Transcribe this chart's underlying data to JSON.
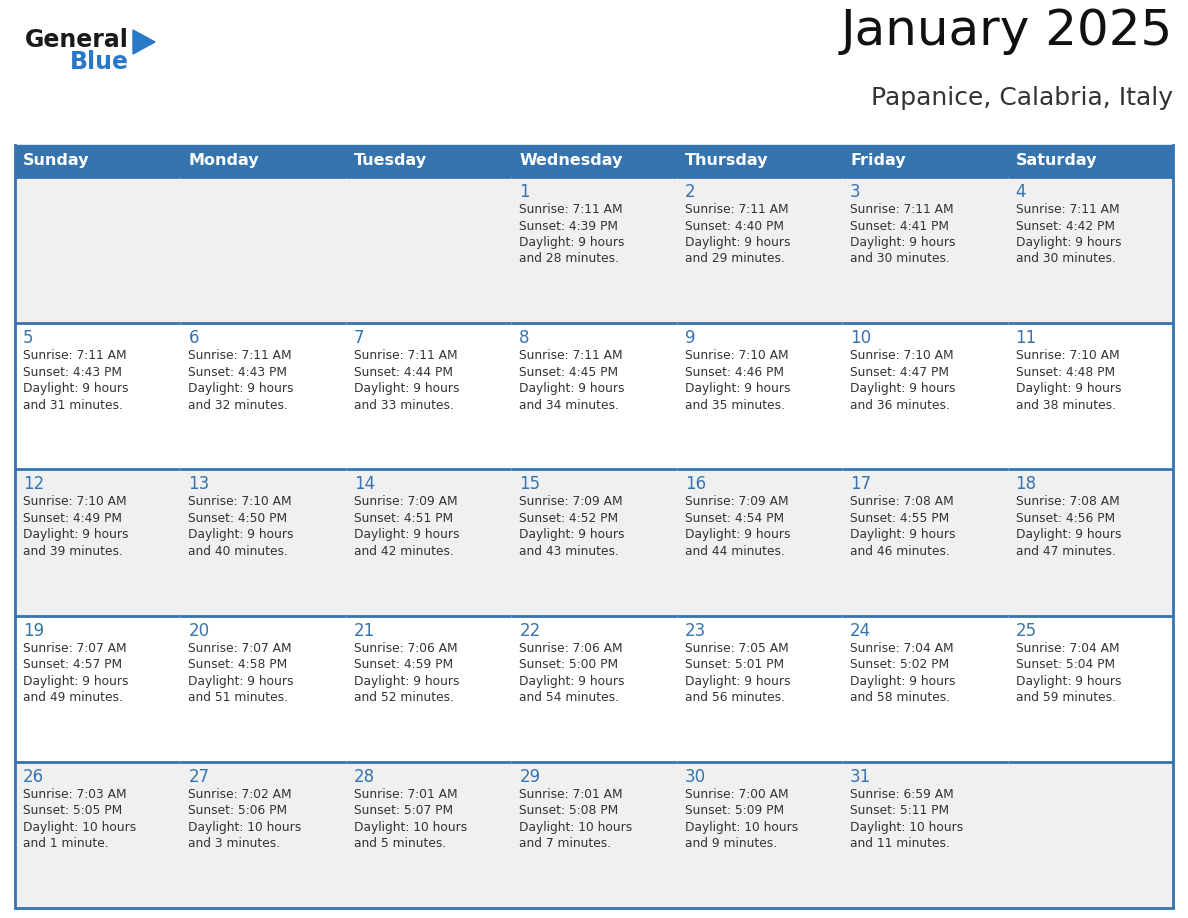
{
  "title": "January 2025",
  "subtitle": "Papanice, Calabria, Italy",
  "header_color": "#3674B0",
  "header_text_color": "#FFFFFF",
  "cell_bg_white": "#FFFFFF",
  "cell_bg_gray": "#F0F0F0",
  "cell_border_color": "#3674B0",
  "day_number_color": "#3674B0",
  "cell_text_color": "#333333",
  "bg_color": "#FFFFFF",
  "days_of_week": [
    "Sunday",
    "Monday",
    "Tuesday",
    "Wednesday",
    "Thursday",
    "Friday",
    "Saturday"
  ],
  "weeks": [
    [
      {
        "day": "",
        "info": ""
      },
      {
        "day": "",
        "info": ""
      },
      {
        "day": "",
        "info": ""
      },
      {
        "day": "1",
        "info": "Sunrise: 7:11 AM\nSunset: 4:39 PM\nDaylight: 9 hours\nand 28 minutes."
      },
      {
        "day": "2",
        "info": "Sunrise: 7:11 AM\nSunset: 4:40 PM\nDaylight: 9 hours\nand 29 minutes."
      },
      {
        "day": "3",
        "info": "Sunrise: 7:11 AM\nSunset: 4:41 PM\nDaylight: 9 hours\nand 30 minutes."
      },
      {
        "day": "4",
        "info": "Sunrise: 7:11 AM\nSunset: 4:42 PM\nDaylight: 9 hours\nand 30 minutes."
      }
    ],
    [
      {
        "day": "5",
        "info": "Sunrise: 7:11 AM\nSunset: 4:43 PM\nDaylight: 9 hours\nand 31 minutes."
      },
      {
        "day": "6",
        "info": "Sunrise: 7:11 AM\nSunset: 4:43 PM\nDaylight: 9 hours\nand 32 minutes."
      },
      {
        "day": "7",
        "info": "Sunrise: 7:11 AM\nSunset: 4:44 PM\nDaylight: 9 hours\nand 33 minutes."
      },
      {
        "day": "8",
        "info": "Sunrise: 7:11 AM\nSunset: 4:45 PM\nDaylight: 9 hours\nand 34 minutes."
      },
      {
        "day": "9",
        "info": "Sunrise: 7:10 AM\nSunset: 4:46 PM\nDaylight: 9 hours\nand 35 minutes."
      },
      {
        "day": "10",
        "info": "Sunrise: 7:10 AM\nSunset: 4:47 PM\nDaylight: 9 hours\nand 36 minutes."
      },
      {
        "day": "11",
        "info": "Sunrise: 7:10 AM\nSunset: 4:48 PM\nDaylight: 9 hours\nand 38 minutes."
      }
    ],
    [
      {
        "day": "12",
        "info": "Sunrise: 7:10 AM\nSunset: 4:49 PM\nDaylight: 9 hours\nand 39 minutes."
      },
      {
        "day": "13",
        "info": "Sunrise: 7:10 AM\nSunset: 4:50 PM\nDaylight: 9 hours\nand 40 minutes."
      },
      {
        "day": "14",
        "info": "Sunrise: 7:09 AM\nSunset: 4:51 PM\nDaylight: 9 hours\nand 42 minutes."
      },
      {
        "day": "15",
        "info": "Sunrise: 7:09 AM\nSunset: 4:52 PM\nDaylight: 9 hours\nand 43 minutes."
      },
      {
        "day": "16",
        "info": "Sunrise: 7:09 AM\nSunset: 4:54 PM\nDaylight: 9 hours\nand 44 minutes."
      },
      {
        "day": "17",
        "info": "Sunrise: 7:08 AM\nSunset: 4:55 PM\nDaylight: 9 hours\nand 46 minutes."
      },
      {
        "day": "18",
        "info": "Sunrise: 7:08 AM\nSunset: 4:56 PM\nDaylight: 9 hours\nand 47 minutes."
      }
    ],
    [
      {
        "day": "19",
        "info": "Sunrise: 7:07 AM\nSunset: 4:57 PM\nDaylight: 9 hours\nand 49 minutes."
      },
      {
        "day": "20",
        "info": "Sunrise: 7:07 AM\nSunset: 4:58 PM\nDaylight: 9 hours\nand 51 minutes."
      },
      {
        "day": "21",
        "info": "Sunrise: 7:06 AM\nSunset: 4:59 PM\nDaylight: 9 hours\nand 52 minutes."
      },
      {
        "day": "22",
        "info": "Sunrise: 7:06 AM\nSunset: 5:00 PM\nDaylight: 9 hours\nand 54 minutes."
      },
      {
        "day": "23",
        "info": "Sunrise: 7:05 AM\nSunset: 5:01 PM\nDaylight: 9 hours\nand 56 minutes."
      },
      {
        "day": "24",
        "info": "Sunrise: 7:04 AM\nSunset: 5:02 PM\nDaylight: 9 hours\nand 58 minutes."
      },
      {
        "day": "25",
        "info": "Sunrise: 7:04 AM\nSunset: 5:04 PM\nDaylight: 9 hours\nand 59 minutes."
      }
    ],
    [
      {
        "day": "26",
        "info": "Sunrise: 7:03 AM\nSunset: 5:05 PM\nDaylight: 10 hours\nand 1 minute."
      },
      {
        "day": "27",
        "info": "Sunrise: 7:02 AM\nSunset: 5:06 PM\nDaylight: 10 hours\nand 3 minutes."
      },
      {
        "day": "28",
        "info": "Sunrise: 7:01 AM\nSunset: 5:07 PM\nDaylight: 10 hours\nand 5 minutes."
      },
      {
        "day": "29",
        "info": "Sunrise: 7:01 AM\nSunset: 5:08 PM\nDaylight: 10 hours\nand 7 minutes."
      },
      {
        "day": "30",
        "info": "Sunrise: 7:00 AM\nSunset: 5:09 PM\nDaylight: 10 hours\nand 9 minutes."
      },
      {
        "day": "31",
        "info": "Sunrise: 6:59 AM\nSunset: 5:11 PM\nDaylight: 10 hours\nand 11 minutes."
      },
      {
        "day": "",
        "info": ""
      }
    ]
  ],
  "logo_general_color": "#1a1a1a",
  "logo_blue_color": "#2878C8",
  "logo_triangle_color": "#2878C8"
}
